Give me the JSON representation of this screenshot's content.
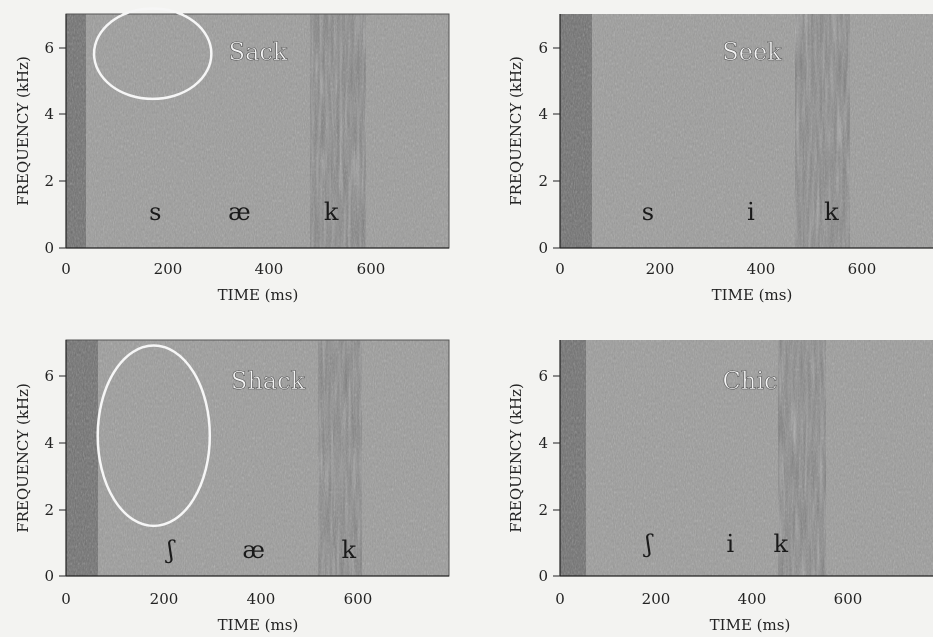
{
  "chart_data": [
    {
      "type": "heatmap",
      "title": "Sack",
      "xlabel": "TIME (ms)",
      "ylabel": "FREQUENCY (kHz)",
      "xlim": [
        0,
        780
      ],
      "ylim": [
        0,
        7
      ],
      "x_ticks": [
        "0",
        "200",
        "400",
        "600"
      ],
      "y_ticks": [
        "0",
        "2",
        "4",
        "6"
      ],
      "segments": [
        {
          "label": "s",
          "time": 175
        },
        {
          "label": "æ",
          "time": 340
        },
        {
          "label": "k",
          "time": 520
        }
      ],
      "ellipse": {
        "cx": 170,
        "cy": 5.8,
        "rx": 115,
        "ry": 1.35
      }
    },
    {
      "type": "heatmap",
      "title": "Seek",
      "xlabel": "TIME (ms)",
      "ylabel": "FREQUENCY (kHz)",
      "xlim": [
        0,
        780
      ],
      "ylim": [
        0,
        7
      ],
      "x_ticks": [
        "0",
        "200",
        "400",
        "600"
      ],
      "y_ticks": [
        "0",
        "2",
        "4",
        "6"
      ],
      "segments": [
        {
          "label": "s",
          "time": 175
        },
        {
          "label": "i",
          "time": 380
        },
        {
          "label": "k",
          "time": 540
        }
      ],
      "ellipse": null
    },
    {
      "type": "heatmap",
      "title": "Shack",
      "xlabel": "TIME (ms)",
      "ylabel": "FREQUENCY (kHz)",
      "xlim": [
        0,
        780
      ],
      "ylim": [
        0,
        7
      ],
      "x_ticks": [
        "0",
        "200",
        "400",
        "600"
      ],
      "y_ticks": [
        "0",
        "2",
        "4",
        "6"
      ],
      "segments": [
        {
          "label": "ʃ",
          "time": 215
        },
        {
          "label": "æ",
          "time": 385
        },
        {
          "label": "k",
          "time": 580
        }
      ],
      "ellipse": {
        "cx": 180,
        "cy": 4.2,
        "rx": 115,
        "ry": 2.7
      }
    },
    {
      "type": "heatmap",
      "title": "Chic",
      "xlabel": "TIME (ms)",
      "ylabel": "FREQUENCY (kHz)",
      "xlim": [
        0,
        780
      ],
      "ylim": [
        0,
        7
      ],
      "x_ticks": [
        "0",
        "200",
        "400",
        "600"
      ],
      "y_ticks": [
        "0",
        "2",
        "4",
        "6"
      ],
      "segments": [
        {
          "label": "ʃ",
          "time": 185
        },
        {
          "label": "i",
          "time": 355
        },
        {
          "label": "k",
          "time": 460
        }
      ],
      "ellipse": null
    }
  ]
}
